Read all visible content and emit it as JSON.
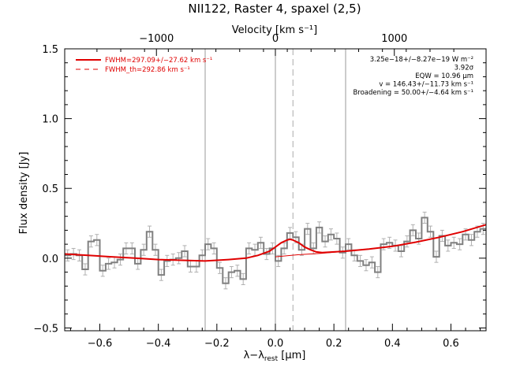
{
  "chart_data": {
    "type": "line",
    "title": "NII122, Raster 4, spaxel (2,5)",
    "xlabel": "λ−λrest [μm]",
    "xlabel_parts": {
      "lambda": "λ−λ",
      "sub": "rest",
      "unit": " [μm]"
    },
    "ylabel": "Flux density [Jy]",
    "top_axis_label": "Velocity [km s⁻¹]",
    "xlim": [
      -0.72,
      0.72
    ],
    "ylim": [
      -0.52,
      1.5
    ],
    "x_ticks": [
      -0.6,
      -0.4,
      -0.2,
      0.0,
      0.2,
      0.4,
      0.6
    ],
    "x_tick_labels": [
      "−0.6",
      "−0.4",
      "−0.2",
      "0.0",
      "0.2",
      "0.4",
      "0.6"
    ],
    "y_ticks": [
      -0.5,
      0.0,
      0.5,
      1.0,
      1.5
    ],
    "y_tick_labels": [
      "−0.5",
      "0.0",
      "0.5",
      "1.0",
      "1.5"
    ],
    "top_ticks_velocity": [
      -1000,
      0,
      1000
    ],
    "top_tick_labels": [
      "−1000",
      "0",
      "1000"
    ],
    "velocity_per_micron": 2460,
    "legend": [
      {
        "label": "FWHM=297.09+/−27.62 km s⁻¹",
        "style": "solid",
        "color": "#e00000"
      },
      {
        "label": "FWHM_th=292.86 km s⁻¹",
        "style": "dashed",
        "color": "#e00000"
      }
    ],
    "annotations": [
      "3.25e−18+/−8.27e−19 W m⁻²",
      "3.92σ",
      "EQW = 10.96 μm",
      "v = 146.43+/−11.73 km s⁻¹",
      "Broadening = 50.00+/−4.64 km s⁻¹"
    ],
    "vertical_lines": {
      "solid": [
        -0.24,
        0.0,
        0.24
      ],
      "dashed": [
        0.06
      ]
    },
    "series": [
      {
        "kind": "step",
        "color": "#808080",
        "bin_width": 0.02,
        "x": [
          -0.72,
          -0.7,
          -0.68,
          -0.66,
          -0.64,
          -0.62,
          -0.6,
          -0.58,
          -0.56,
          -0.54,
          -0.52,
          -0.5,
          -0.48,
          -0.46,
          -0.44,
          -0.42,
          -0.4,
          -0.38,
          -0.36,
          -0.34,
          -0.32,
          -0.3,
          -0.28,
          -0.26,
          -0.24,
          -0.22,
          -0.2,
          -0.18,
          -0.16,
          -0.14,
          -0.12,
          -0.1,
          -0.08,
          -0.06,
          -0.04,
          -0.02,
          0.0,
          0.02,
          0.04,
          0.06,
          0.08,
          0.1,
          0.12,
          0.14,
          0.16,
          0.18,
          0.2,
          0.22,
          0.24,
          0.26,
          0.28,
          0.3,
          0.32,
          0.34,
          0.36,
          0.38,
          0.4,
          0.42,
          0.44,
          0.46,
          0.48,
          0.5,
          0.52,
          0.54,
          0.56,
          0.58,
          0.6,
          0.62,
          0.64,
          0.66,
          0.68,
          0.7
        ],
        "y": [
          0.02,
          0.03,
          0.02,
          -0.08,
          0.12,
          0.13,
          -0.09,
          -0.04,
          -0.03,
          -0.01,
          0.07,
          0.07,
          -0.04,
          0.06,
          0.19,
          0.06,
          -0.12,
          -0.02,
          -0.01,
          0.0,
          0.05,
          -0.06,
          -0.06,
          0.02,
          0.1,
          0.07,
          -0.07,
          -0.18,
          -0.1,
          -0.09,
          -0.15,
          0.07,
          0.06,
          0.11,
          0.03,
          0.07,
          -0.02,
          0.07,
          0.18,
          0.15,
          0.06,
          0.21,
          0.07,
          0.22,
          0.12,
          0.17,
          0.14,
          0.04,
          0.1,
          0.02,
          -0.02,
          -0.05,
          -0.03,
          -0.1,
          0.1,
          0.11,
          0.09,
          0.05,
          0.12,
          0.2,
          0.14,
          0.29,
          0.19,
          0.01,
          0.16,
          0.09,
          0.11,
          0.1,
          0.17,
          0.13,
          0.19,
          0.21
        ],
        "error": 0.04
      },
      {
        "kind": "model",
        "color": "#e00000",
        "x": [
          -0.72,
          -0.64,
          -0.56,
          -0.48,
          -0.4,
          -0.32,
          -0.24,
          -0.16,
          -0.1,
          -0.06,
          -0.02,
          0.0,
          0.02,
          0.04,
          0.05,
          0.06,
          0.07,
          0.08,
          0.1,
          0.12,
          0.14,
          0.16,
          0.2,
          0.24,
          0.32,
          0.4,
          0.48,
          0.56,
          0.64,
          0.72
        ],
        "y": [
          0.03,
          0.02,
          0.01,
          0.0,
          -0.01,
          -0.015,
          -0.02,
          -0.01,
          0.0,
          0.02,
          0.05,
          0.08,
          0.11,
          0.13,
          0.135,
          0.13,
          0.12,
          0.11,
          0.08,
          0.06,
          0.045,
          0.04,
          0.045,
          0.05,
          0.065,
          0.085,
          0.115,
          0.15,
          0.19,
          0.24
        ]
      },
      {
        "kind": "continuum",
        "color": "#e00000",
        "x": [
          0.0,
          0.08,
          0.16,
          0.24
        ],
        "y": [
          0.01,
          0.025,
          0.035,
          0.05
        ]
      }
    ]
  }
}
